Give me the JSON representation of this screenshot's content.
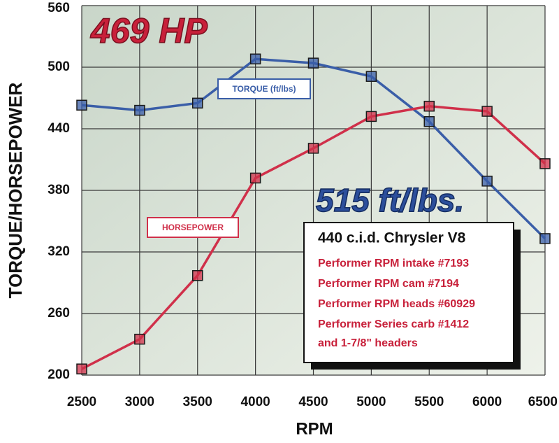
{
  "chart_data": {
    "type": "line",
    "x_label": "RPM",
    "y_label": "TORQUE/HORSEPOWER",
    "x": [
      2500,
      3000,
      3500,
      4000,
      4500,
      5000,
      5500,
      6000,
      6500
    ],
    "series": [
      {
        "name": "TORQUE (ft/lbs)",
        "color": "#3a5ea8",
        "values": [
          463,
          458,
          465,
          508,
          504,
          491,
          447,
          389,
          333
        ]
      },
      {
        "name": "HORSEPOWER",
        "color": "#d0304a",
        "values": [
          206,
          235,
          297,
          392,
          421,
          452,
          462,
          457,
          406
        ]
      }
    ],
    "xlim": [
      2500,
      6500
    ],
    "xticks": [
      2500,
      3000,
      3500,
      4000,
      4500,
      5000,
      5500,
      6000,
      6500
    ],
    "ylim": [
      200,
      560
    ],
    "yticks": [
      200,
      260,
      320,
      380,
      440,
      500,
      560
    ],
    "grid": true,
    "annotations": [
      "469 HP",
      "515 ft/lbs."
    ],
    "info_box": {
      "title": "440 c.i.d. Chrysler V8",
      "lines": [
        "Performer RPM intake #7193",
        "Performer RPM cam #7194",
        "Performer RPM heads #60929",
        "Performer Series carb #1412",
        "and 1-7/8\" headers"
      ]
    }
  }
}
